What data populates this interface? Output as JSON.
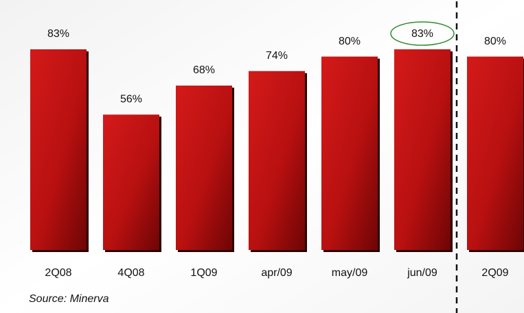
{
  "chart_data": {
    "type": "bar",
    "categories": [
      "2Q08",
      "4Q08",
      "1Q09",
      "apr/09",
      "may/09",
      "jun/09",
      "2Q09"
    ],
    "values": [
      83,
      56,
      68,
      74,
      80,
      83,
      80
    ],
    "value_labels": [
      "83%",
      "56%",
      "68%",
      "74%",
      "80%",
      "83%",
      "80%"
    ],
    "color": "#cc1111",
    "source": "Source: Minerva"
  }
}
